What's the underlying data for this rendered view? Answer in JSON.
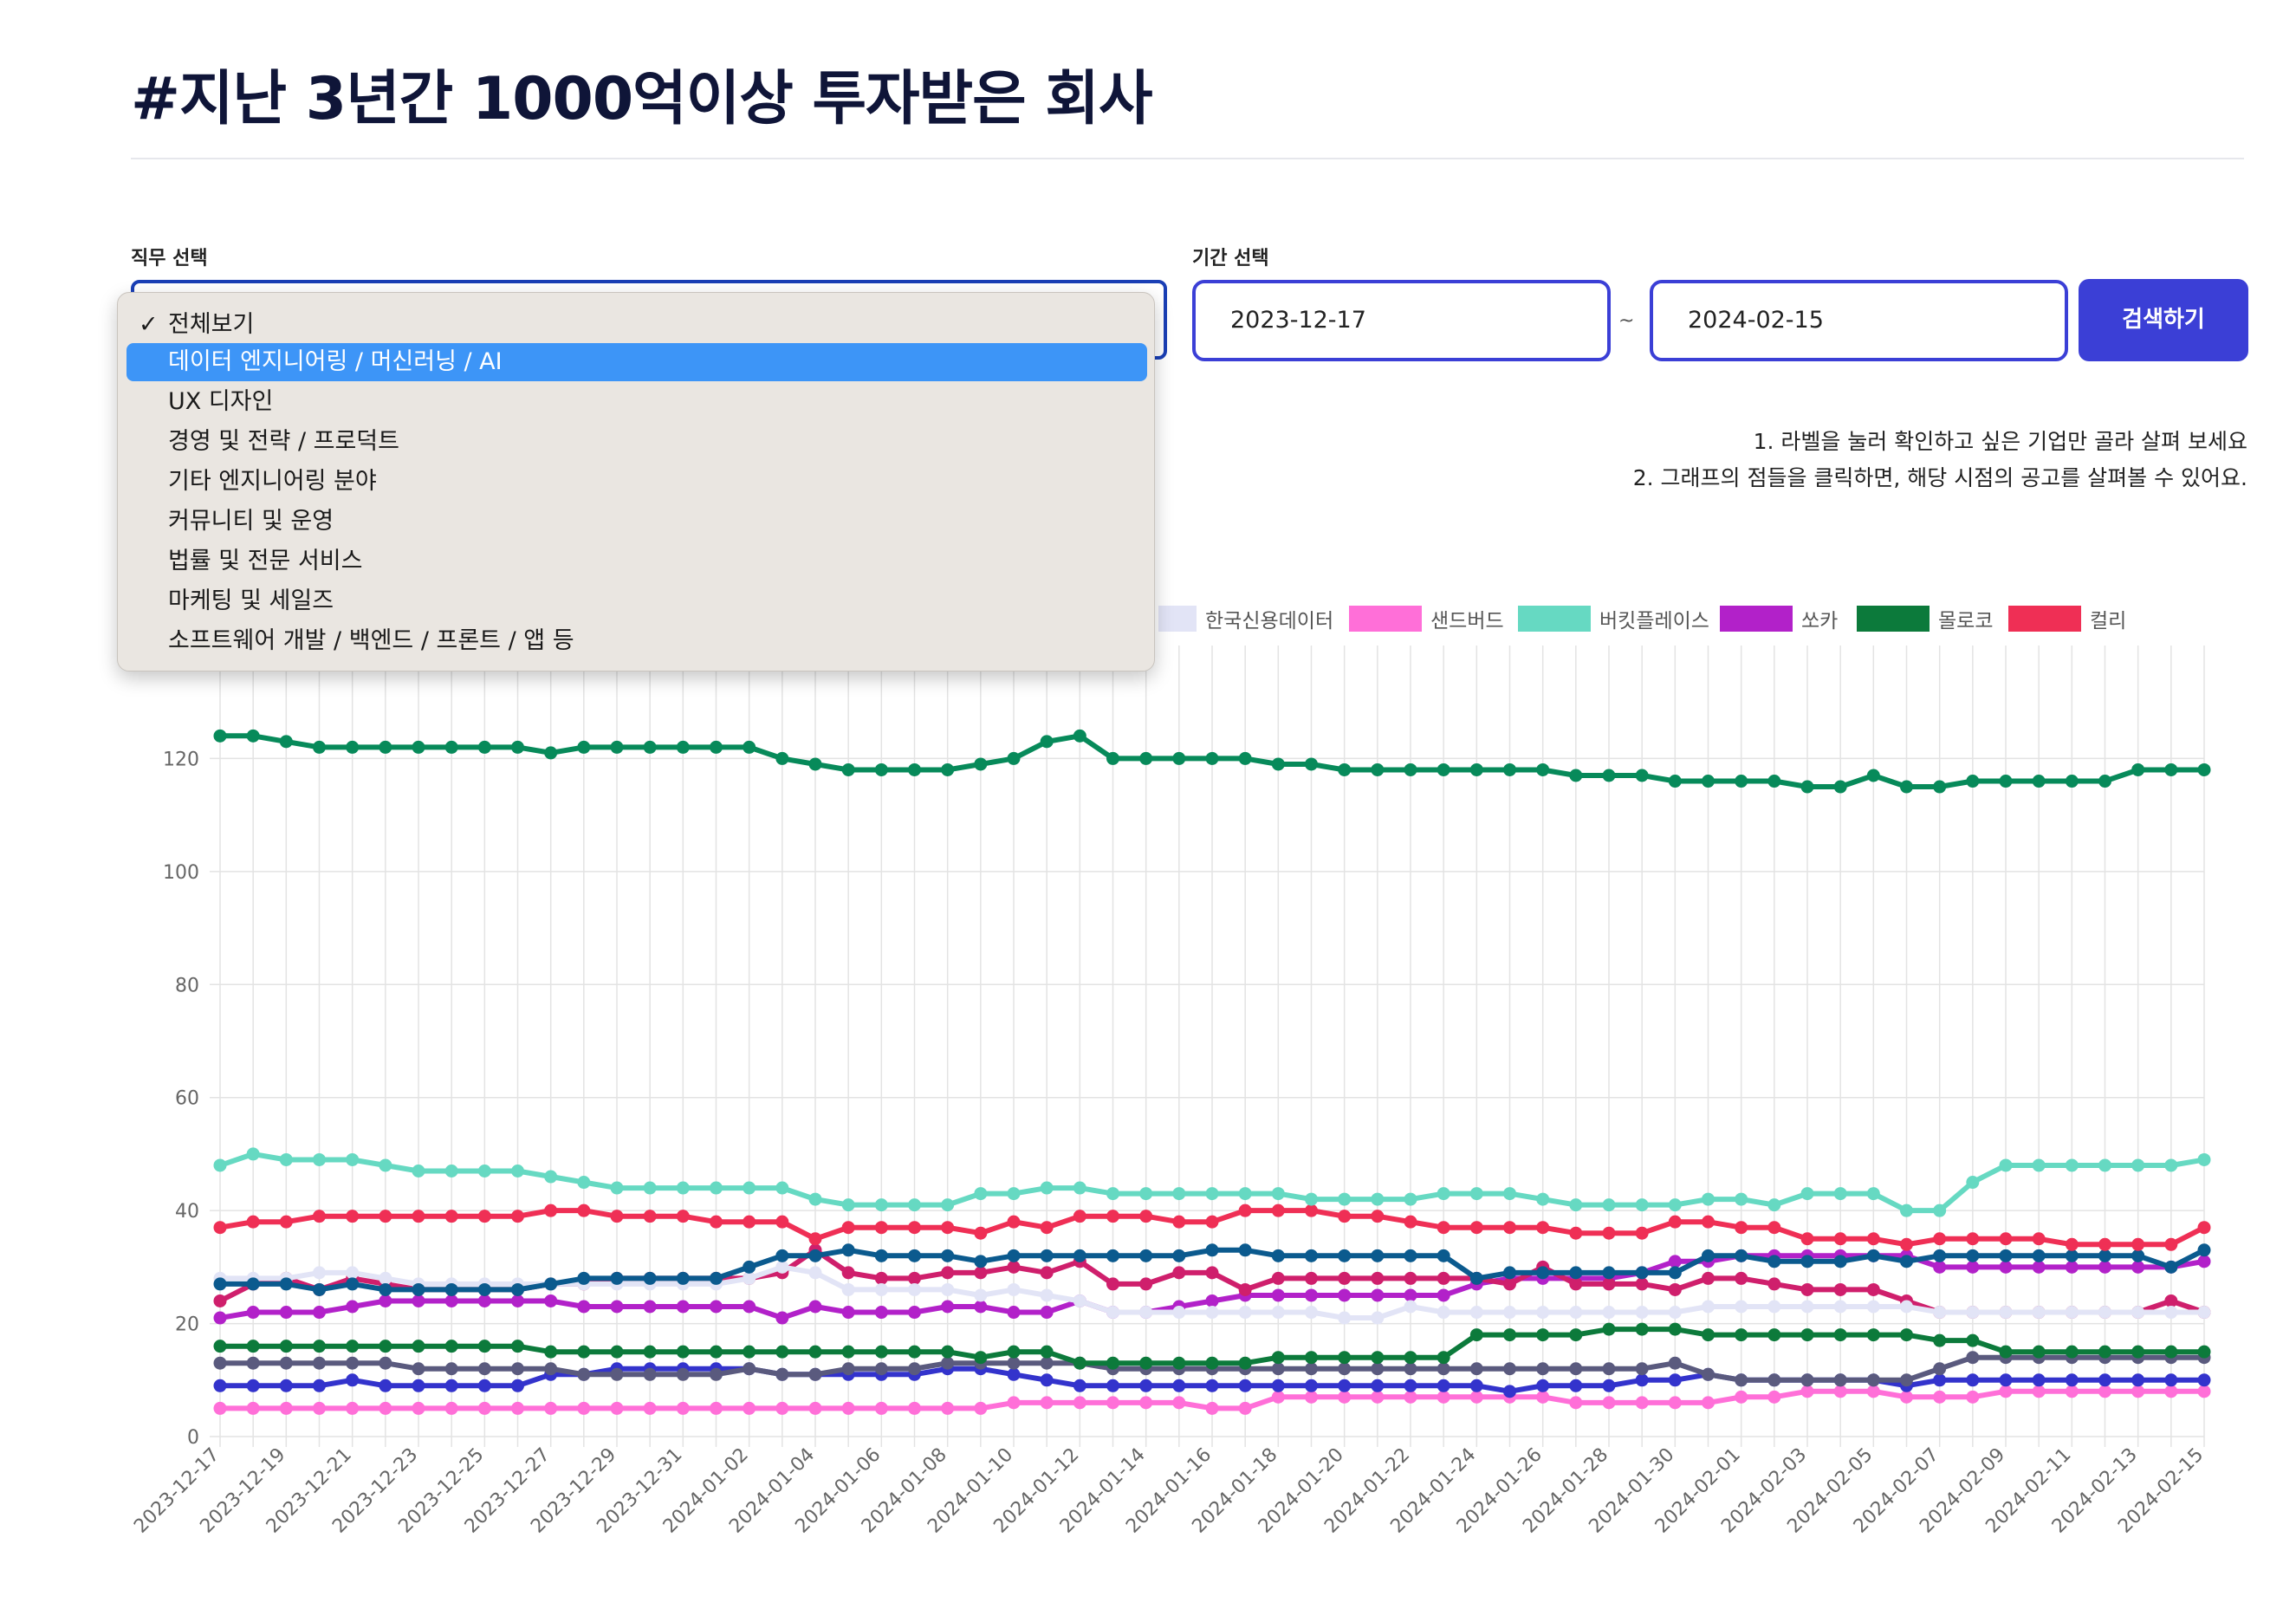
{
  "page": {
    "title": "#지난 3년간 1000억이상 투자받은 회사"
  },
  "filters": {
    "job_label": "직무 선택",
    "period_label": "기간 선택",
    "start_date": "2023-12-17",
    "separator": "~",
    "end_date": "2024-02-15",
    "search_button": "검색하기"
  },
  "hints": {
    "line1": "1. 라벨을 눌러 확인하고 싶은 기업만 골라 살펴 보세요",
    "line2": "2. 그래프의 점들을 클릭하면, 해당 시점의 공고를 살펴볼 수 있어요."
  },
  "dropdown": {
    "checkmark": "✓",
    "options": [
      "전체보기",
      "데이터 엔지니어링 / 머신러닝 / AI",
      "UX 디자인",
      "경영 및 전략 / 프로덕트",
      "기타 엔지니어링 분야",
      "커뮤니티 및 운영",
      "법률 및 전문 서비스",
      "마케팅 및 세일즈",
      "소프트웨어 개발 / 백엔드 / 프론트 / 앱 등"
    ],
    "selected_index": 0,
    "highlighted_index": 1
  },
  "chart_data": {
    "type": "line",
    "x": [
      "2023-12-17",
      "2023-12-18",
      "2023-12-19",
      "2023-12-20",
      "2023-12-21",
      "2023-12-22",
      "2023-12-23",
      "2023-12-24",
      "2023-12-25",
      "2023-12-26",
      "2023-12-27",
      "2023-12-28",
      "2023-12-29",
      "2023-12-30",
      "2023-12-31",
      "2024-01-01",
      "2024-01-02",
      "2024-01-03",
      "2024-01-04",
      "2024-01-05",
      "2024-01-06",
      "2024-01-07",
      "2024-01-08",
      "2024-01-09",
      "2024-01-10",
      "2024-01-11",
      "2024-01-12",
      "2024-01-13",
      "2024-01-14",
      "2024-01-15",
      "2024-01-16",
      "2024-01-17",
      "2024-01-18",
      "2024-01-19",
      "2024-01-20",
      "2024-01-21",
      "2024-01-22",
      "2024-01-23",
      "2024-01-24",
      "2024-01-25",
      "2024-01-26",
      "2024-01-27",
      "2024-01-28",
      "2024-01-29",
      "2024-01-30",
      "2024-01-31",
      "2024-02-01",
      "2024-02-02",
      "2024-02-03",
      "2024-02-04",
      "2024-02-05",
      "2024-02-06",
      "2024-02-07",
      "2024-02-08",
      "2024-02-09",
      "2024-02-10",
      "2024-02-11",
      "2024-02-12",
      "2024-02-13",
      "2024-02-14",
      "2024-02-15"
    ],
    "x_tick_labels": [
      "2023-12-17",
      "2023-12-19",
      "2023-12-21",
      "2023-12-23",
      "2023-12-25",
      "2023-12-27",
      "2023-12-29",
      "2023-12-31",
      "2024-01-02",
      "2024-01-04",
      "2024-01-06",
      "2024-01-08",
      "2024-01-10",
      "2024-01-12",
      "2024-01-14",
      "2024-01-16",
      "2024-01-18",
      "2024-01-20",
      "2024-01-22",
      "2024-01-24",
      "2024-01-26",
      "2024-01-28",
      "2024-01-30",
      "2024-02-01",
      "2024-02-03",
      "2024-02-05",
      "2024-02-07",
      "2024-02-09",
      "2024-02-11",
      "2024-02-13",
      "2024-02-15"
    ],
    "y_ticks": [
      0,
      20,
      40,
      60,
      80,
      100,
      120
    ],
    "ylim": [
      0,
      140
    ],
    "grid": true,
    "legend_position": "top",
    "series": [
      {
        "name": "",
        "color": "#078a5a",
        "values": [
          124,
          124,
          123,
          122,
          122,
          122,
          122,
          122,
          122,
          122,
          121,
          122,
          122,
          122,
          122,
          122,
          122,
          120,
          119,
          118,
          118,
          118,
          118,
          119,
          120,
          123,
          124,
          120,
          120,
          120,
          120,
          120,
          119,
          119,
          118,
          118,
          118,
          118,
          118,
          118,
          118,
          117,
          117,
          117,
          116,
          116,
          116,
          116,
          115,
          115,
          117,
          115,
          115,
          116,
          116,
          116,
          116,
          116,
          118,
          118,
          118
        ]
      },
      {
        "name": "버킷플레이스",
        "color": "#66d9c2",
        "values": [
          48,
          50,
          49,
          49,
          49,
          48,
          47,
          47,
          47,
          47,
          46,
          45,
          44,
          44,
          44,
          44,
          44,
          44,
          42,
          41,
          41,
          41,
          41,
          43,
          43,
          44,
          44,
          43,
          43,
          43,
          43,
          43,
          43,
          42,
          42,
          42,
          42,
          43,
          43,
          43,
          42,
          41,
          41,
          41,
          41,
          42,
          42,
          41,
          43,
          43,
          43,
          40,
          40,
          45,
          48,
          48,
          48,
          48,
          48,
          48,
          49
        ]
      },
      {
        "name": "컬리",
        "color": "#ef2f55",
        "values": [
          37,
          38,
          38,
          39,
          39,
          39,
          39,
          39,
          39,
          39,
          40,
          40,
          39,
          39,
          39,
          38,
          38,
          38,
          35,
          37,
          37,
          37,
          37,
          36,
          38,
          37,
          39,
          39,
          39,
          38,
          38,
          40,
          40,
          40,
          39,
          39,
          38,
          37,
          37,
          37,
          37,
          36,
          36,
          36,
          38,
          38,
          37,
          37,
          35,
          35,
          35,
          34,
          35,
          35,
          35,
          35,
          34,
          34,
          34,
          34,
          37
        ]
      },
      {
        "name": "",
        "color": "#0b5a8e",
        "values": [
          27,
          27,
          27,
          26,
          27,
          26,
          26,
          26,
          26,
          26,
          27,
          28,
          28,
          28,
          28,
          28,
          30,
          32,
          32,
          33,
          32,
          32,
          32,
          31,
          32,
          32,
          32,
          32,
          32,
          32,
          33,
          33,
          32,
          32,
          32,
          32,
          32,
          32,
          28,
          29,
          29,
          29,
          29,
          29,
          29,
          32,
          32,
          31,
          31,
          31,
          32,
          31,
          32,
          32,
          32,
          32,
          32,
          32,
          32,
          30,
          33
        ]
      },
      {
        "name": "",
        "color": "#e2e4f6",
        "values": [
          28,
          28,
          28,
          29,
          29,
          28,
          27,
          27,
          27,
          27,
          27,
          27,
          27,
          27,
          27,
          27,
          28,
          30,
          29,
          26,
          26,
          26,
          26,
          25,
          26,
          25,
          24,
          22,
          22,
          22,
          22,
          22,
          22,
          22,
          21,
          21,
          23,
          22,
          22,
          22,
          22,
          22,
          22,
          22,
          22,
          23,
          23,
          23,
          23,
          23,
          23,
          23,
          22,
          22,
          22,
          22,
          22,
          22,
          22,
          22,
          22
        ]
      },
      {
        "name": "",
        "color": "#cf1f6c",
        "values": [
          24,
          27,
          28,
          26,
          28,
          27,
          26,
          26,
          26,
          26,
          27,
          27,
          28,
          28,
          28,
          28,
          28,
          29,
          33,
          29,
          28,
          28,
          29,
          29,
          30,
          29,
          31,
          27,
          27,
          29,
          29,
          26,
          28,
          28,
          28,
          28,
          28,
          28,
          28,
          27,
          30,
          27,
          27,
          27,
          26,
          28,
          28,
          27,
          26,
          26,
          26,
          24,
          22,
          22,
          22,
          22,
          22,
          22,
          22,
          24,
          22
        ]
      },
      {
        "name": "쏘카",
        "color": "#b221c9",
        "values": [
          21,
          22,
          22,
          22,
          23,
          24,
          24,
          24,
          24,
          24,
          24,
          23,
          23,
          23,
          23,
          23,
          23,
          21,
          23,
          22,
          22,
          22,
          23,
          23,
          22,
          22,
          24,
          22,
          22,
          23,
          24,
          25,
          25,
          25,
          25,
          25,
          25,
          25,
          27,
          28,
          28,
          28,
          28,
          29,
          31,
          31,
          32,
          32,
          32,
          32,
          32,
          32,
          30,
          30,
          30,
          30,
          30,
          30,
          30,
          30,
          31
        ]
      },
      {
        "name": "몰로코",
        "color": "#0c7a3b",
        "values": [
          16,
          16,
          16,
          16,
          16,
          16,
          16,
          16,
          16,
          16,
          15,
          15,
          15,
          15,
          15,
          15,
          15,
          15,
          15,
          15,
          15,
          15,
          15,
          14,
          15,
          15,
          13,
          13,
          13,
          13,
          13,
          13,
          14,
          14,
          14,
          14,
          14,
          14,
          18,
          18,
          18,
          18,
          19,
          19,
          19,
          18,
          18,
          18,
          18,
          18,
          18,
          18,
          17,
          17,
          15,
          15,
          15,
          15,
          15,
          15,
          15
        ]
      },
      {
        "name": "",
        "color": "#5a5a7e",
        "values": [
          13,
          13,
          13,
          13,
          13,
          13,
          12,
          12,
          12,
          12,
          12,
          11,
          11,
          11,
          11,
          11,
          12,
          11,
          11,
          12,
          12,
          12,
          13,
          13,
          13,
          13,
          13,
          12,
          12,
          12,
          12,
          12,
          12,
          12,
          12,
          12,
          12,
          12,
          12,
          12,
          12,
          12,
          12,
          12,
          13,
          11,
          10,
          10,
          10,
          10,
          10,
          10,
          12,
          14,
          14,
          14,
          14,
          14,
          14,
          14,
          14
        ]
      },
      {
        "name": "",
        "color": "#3333cc",
        "values": [
          9,
          9,
          9,
          9,
          10,
          9,
          9,
          9,
          9,
          9,
          11,
          11,
          12,
          12,
          12,
          12,
          12,
          11,
          11,
          11,
          11,
          11,
          12,
          12,
          11,
          10,
          9,
          9,
          9,
          9,
          9,
          9,
          9,
          9,
          9,
          9,
          9,
          9,
          9,
          8,
          9,
          9,
          9,
          10,
          10,
          11,
          10,
          10,
          10,
          10,
          10,
          9,
          10,
          10,
          10,
          10,
          10,
          10,
          10,
          10,
          10
        ]
      },
      {
        "name": "샌드버드",
        "color": "#ff6fd8",
        "values": [
          5,
          5,
          5,
          5,
          5,
          5,
          5,
          5,
          5,
          5,
          5,
          5,
          5,
          5,
          5,
          5,
          5,
          5,
          5,
          5,
          5,
          5,
          5,
          5,
          6,
          6,
          6,
          6,
          6,
          6,
          5,
          5,
          7,
          7,
          7,
          7,
          7,
          7,
          7,
          7,
          7,
          6,
          6,
          6,
          6,
          6,
          7,
          7,
          8,
          8,
          8,
          7,
          7,
          7,
          8,
          8,
          8,
          8,
          8,
          8,
          8
        ]
      }
    ]
  },
  "legend": [
    {
      "label": "한국신용데이터",
      "color": "#e2e4f6"
    },
    {
      "label": "샌드버드",
      "color": "#ff6fd8"
    },
    {
      "label": "버킷플레이스",
      "color": "#66d9c2"
    },
    {
      "label": "쏘카",
      "color": "#b221c9"
    },
    {
      "label": "몰로코",
      "color": "#0c7a3b"
    },
    {
      "label": "컬리",
      "color": "#ef2f55"
    }
  ]
}
